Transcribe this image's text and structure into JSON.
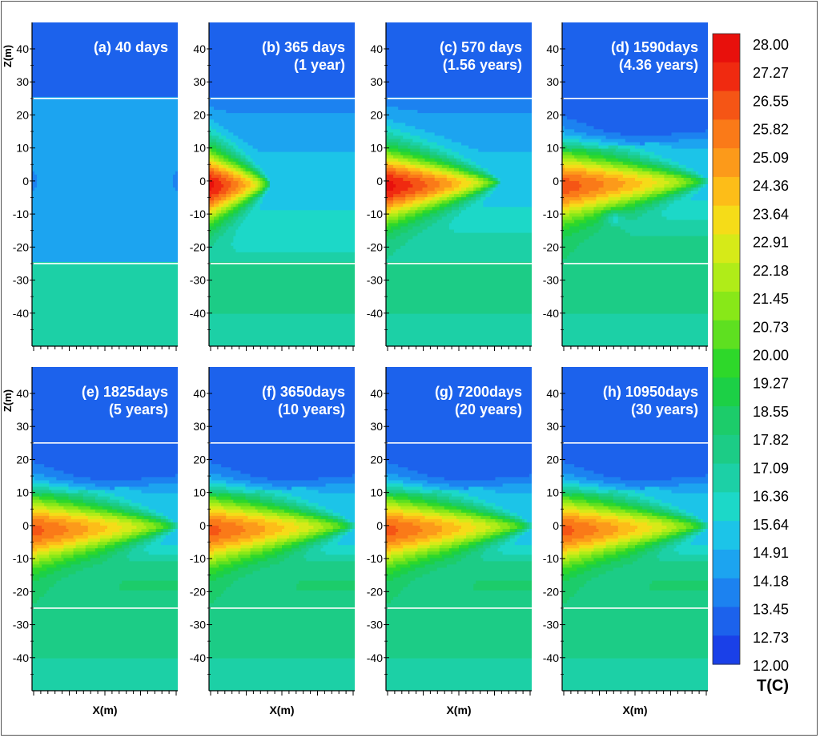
{
  "chart_data": {
    "type": "heatmap",
    "description_kind": "small-multiples temperature contour plots",
    "layer_boundaries_z": [
      25,
      -25
    ],
    "axes": {
      "xlabel": "X(m)",
      "ylabel": "Z(m)",
      "ylim": [
        -50,
        48
      ],
      "yticks": [
        40,
        30,
        20,
        10,
        0,
        -10,
        -20,
        -30,
        -40
      ],
      "ytick_labels": [
        "40",
        "30",
        "20",
        "10",
        "0",
        "-10",
        "-20",
        "-30",
        "-40"
      ]
    },
    "panels": [
      {
        "id": "a",
        "title_line1": "(a) 40 days",
        "title_line2": "",
        "hot_intensity": 0.0,
        "hot_reach": 0.0,
        "cold_reach": 0.0,
        "heat_up": 0.1,
        "heat_down": 0.25
      },
      {
        "id": "b",
        "title_line1": "(b) 365 days",
        "title_line2": "(1 year)",
        "hot_intensity": 1.0,
        "hot_reach": 0.42,
        "cold_reach": 0.0,
        "heat_up": 0.3,
        "heat_down": 0.55
      },
      {
        "id": "c",
        "title_line1": "(c) 570 days",
        "title_line2": "(1.56 years)",
        "hot_intensity": 1.0,
        "hot_reach": 0.78,
        "cold_reach": 0.0,
        "heat_up": 0.25,
        "heat_down": 0.7
      },
      {
        "id": "d",
        "title_line1": "(d) 1590days",
        "title_line2": "(4.36 years)",
        "hot_intensity": 0.9,
        "hot_reach": 1.0,
        "cold_reach": 0.6,
        "heat_up": 0.1,
        "heat_down": 1.0
      },
      {
        "id": "e",
        "title_line1": "(e) 1825days",
        "title_line2": "(5 years)",
        "hot_intensity": 0.88,
        "hot_reach": 1.0,
        "cold_reach": 1.0,
        "heat_up": 0.1,
        "heat_down": 1.0
      },
      {
        "id": "f",
        "title_line1": "(f) 3650days",
        "title_line2": "(10 years)",
        "hot_intensity": 0.88,
        "hot_reach": 1.0,
        "cold_reach": 1.0,
        "heat_up": 0.1,
        "heat_down": 1.0
      },
      {
        "id": "g",
        "title_line1": "(g) 7200days",
        "title_line2": "(20 years)",
        "hot_intensity": 0.88,
        "hot_reach": 1.0,
        "cold_reach": 1.0,
        "heat_up": 0.1,
        "heat_down": 1.0
      },
      {
        "id": "h",
        "title_line1": "(h) 10950days",
        "title_line2": "(30 years)",
        "hot_intensity": 0.88,
        "hot_reach": 1.0,
        "cold_reach": 1.0,
        "heat_up": 0.1,
        "heat_down": 1.0
      }
    ],
    "colorbar": {
      "title": "T(C)",
      "levels": [
        "28.00",
        "27.27",
        "26.55",
        "25.82",
        "25.09",
        "24.36",
        "23.64",
        "22.91",
        "22.18",
        "21.45",
        "20.73",
        "20.00",
        "19.27",
        "18.55",
        "17.82",
        "17.09",
        "16.36",
        "15.64",
        "14.91",
        "14.18",
        "13.45",
        "12.73",
        "12.00"
      ],
      "min": 12.0,
      "max": 28.0,
      "colors": [
        "#e8100c",
        "#f02a10",
        "#f55515",
        "#fa7a18",
        "#fc9a1a",
        "#fdbd18",
        "#f5dc18",
        "#d6ea18",
        "#b0ec18",
        "#88e818",
        "#5ee020",
        "#2ed82a",
        "#1cd046",
        "#1ccc6a",
        "#1ccc86",
        "#1cd0a6",
        "#1cd8c8",
        "#1cc4e8",
        "#1ca4f0",
        "#1c82f0",
        "#1c62ec",
        "#1a40e8",
        "#1a20e0"
      ]
    }
  }
}
